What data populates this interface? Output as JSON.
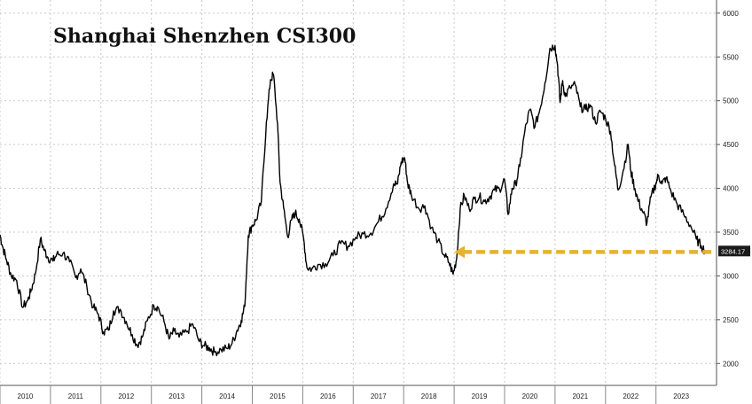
{
  "chart_data": {
    "type": "line",
    "title": "Shanghai Shenzhen CSI300",
    "xlabel": "",
    "ylabel": "",
    "x_tick_labels": [
      "2010",
      "2011",
      "2012",
      "2013",
      "2014",
      "2015",
      "2016",
      "2017",
      "2018",
      "2019",
      "2020",
      "2021",
      "2022",
      "2023"
    ],
    "y_tick_labels": [
      "2000",
      "2500",
      "3000",
      "3500",
      "4000",
      "4500",
      "5000",
      "5500",
      "6000"
    ],
    "xlim": [
      2010.0,
      2024.2
    ],
    "ylim": [
      1750,
      6150
    ],
    "grid": true,
    "legend": "none",
    "last_value_label": "3284.17",
    "colors": {
      "line": "#000000",
      "arrow": "#e8b22e",
      "price_label_bg": "#1a1a1a",
      "grid": "#c8c8c8"
    },
    "series": [
      {
        "x": [
          2010.0,
          2010.05,
          2010.13,
          2010.22,
          2010.33,
          2010.45,
          2010.55,
          2010.62,
          2010.7,
          2010.8,
          2010.88,
          2010.95,
          2011.05,
          2011.12,
          2011.25,
          2011.38,
          2011.5,
          2011.6,
          2011.72,
          2011.85,
          2011.95,
          2012.05,
          2012.15,
          2012.25,
          2012.38,
          2012.5,
          2012.62,
          2012.72,
          2012.82,
          2012.92,
          2013.05,
          2013.12,
          2013.25,
          2013.35,
          2013.45,
          2013.55,
          2013.7,
          2013.82,
          2013.95,
          2014.05,
          2014.15,
          2014.25,
          2014.38,
          2014.5,
          2014.6,
          2014.7,
          2014.78,
          2014.85,
          2014.92,
          2015.0,
          2015.08,
          2015.18,
          2015.28,
          2015.36,
          2015.42,
          2015.5,
          2015.55,
          2015.62,
          2015.7,
          2015.78,
          2015.85,
          2015.93,
          2016.02,
          2016.08,
          2016.18,
          2016.3,
          2016.45,
          2016.6,
          2016.75,
          2016.9,
          2017.05,
          2017.2,
          2017.35,
          2017.5,
          2017.65,
          2017.8,
          2017.88,
          2017.95,
          2018.02,
          2018.08,
          2018.15,
          2018.3,
          2018.42,
          2018.55,
          2018.68,
          2018.8,
          2018.9,
          2018.98,
          2019.05,
          2019.12,
          2019.2,
          2019.3,
          2019.4,
          2019.5,
          2019.6,
          2019.7,
          2019.8,
          2019.9,
          2020.0,
          2020.07,
          2020.15,
          2020.22,
          2020.3,
          2020.4,
          2020.5,
          2020.6,
          2020.7,
          2020.8,
          2020.9,
          2021.0,
          2021.05,
          2021.1,
          2021.15,
          2021.2,
          2021.3,
          2021.4,
          2021.5,
          2021.6,
          2021.7,
          2021.8,
          2021.9,
          2022.0,
          2022.1,
          2022.18,
          2022.25,
          2022.35,
          2022.45,
          2022.5,
          2022.58,
          2022.65,
          2022.75,
          2022.82,
          2022.9,
          2023.0,
          2023.05,
          2023.12,
          2023.2,
          2023.3,
          2023.42,
          2023.55,
          2023.68,
          2023.8,
          2023.9,
          2023.98
        ],
        "y": [
          3470,
          3340,
          3180,
          3010,
          2950,
          2640,
          2720,
          2840,
          3020,
          3420,
          3290,
          3210,
          3170,
          3240,
          3260,
          3160,
          2980,
          3080,
          2880,
          2640,
          2560,
          2360,
          2380,
          2600,
          2620,
          2480,
          2330,
          2210,
          2300,
          2490,
          2660,
          2650,
          2480,
          2280,
          2370,
          2300,
          2360,
          2450,
          2250,
          2200,
          2180,
          2130,
          2160,
          2170,
          2230,
          2380,
          2490,
          2650,
          3460,
          3580,
          3640,
          3850,
          4760,
          5240,
          5300,
          4740,
          4070,
          3780,
          3450,
          3640,
          3720,
          3650,
          3420,
          3100,
          3080,
          3130,
          3140,
          3230,
          3370,
          3340,
          3440,
          3480,
          3490,
          3620,
          3770,
          4050,
          4050,
          4300,
          4350,
          4050,
          3930,
          3770,
          3800,
          3550,
          3400,
          3240,
          3150,
          3020,
          3200,
          3760,
          3920,
          3760,
          3880,
          3900,
          3850,
          3900,
          3980,
          3990,
          4100,
          3700,
          4000,
          4050,
          4250,
          4650,
          4900,
          4700,
          4900,
          5200,
          5600,
          5630,
          5400,
          4980,
          5230,
          5050,
          5150,
          5180,
          4930,
          4900,
          4950,
          4750,
          4880,
          4800,
          4650,
          4260,
          3980,
          4200,
          4500,
          4200,
          4000,
          3850,
          3720,
          3600,
          3900,
          4060,
          4150,
          4050,
          4120,
          3960,
          3820,
          3700,
          3580,
          3420,
          3340,
          3284.17
        ]
      }
    ]
  }
}
